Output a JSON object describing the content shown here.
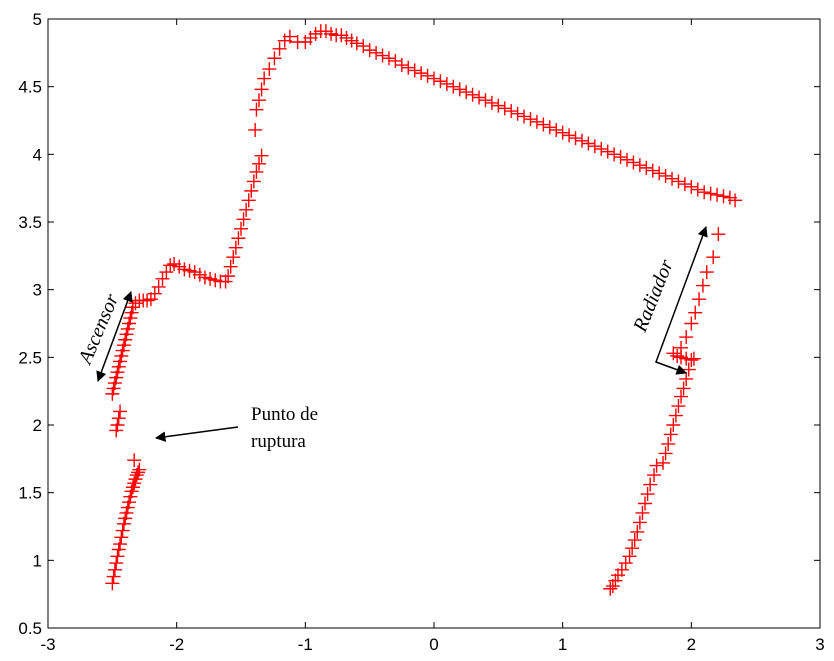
{
  "chart_data": {
    "type": "scatter",
    "xlim": [
      -3,
      3
    ],
    "ylim": [
      0.5,
      5
    ],
    "xticks": [
      "-3",
      "-2",
      "-1",
      "0",
      "1",
      "2",
      "3"
    ],
    "yticks": [
      "0.5",
      "1",
      "1.5",
      "2",
      "2.5",
      "3",
      "3.5",
      "4",
      "4.5",
      "5"
    ],
    "grid": false,
    "marker": "+",
    "marker_color": "#ff0000",
    "series": [
      {
        "values": [
          {
            "x": -2.5,
            "y": 0.83
          },
          {
            "x": -2.49,
            "y": 0.88
          },
          {
            "x": -2.48,
            "y": 0.93
          },
          {
            "x": -2.47,
            "y": 0.98
          },
          {
            "x": -2.46,
            "y": 1.03
          },
          {
            "x": -2.45,
            "y": 1.08
          },
          {
            "x": -2.44,
            "y": 1.12
          },
          {
            "x": -2.43,
            "y": 1.17
          },
          {
            "x": -2.42,
            "y": 1.22
          },
          {
            "x": -2.41,
            "y": 1.27
          },
          {
            "x": -2.4,
            "y": 1.31
          },
          {
            "x": -2.39,
            "y": 1.35
          },
          {
            "x": -2.38,
            "y": 1.39
          },
          {
            "x": -2.37,
            "y": 1.43
          },
          {
            "x": -2.36,
            "y": 1.47
          },
          {
            "x": -2.35,
            "y": 1.51
          },
          {
            "x": -2.34,
            "y": 1.54
          },
          {
            "x": -2.33,
            "y": 1.57
          },
          {
            "x": -2.32,
            "y": 1.6
          },
          {
            "x": -2.31,
            "y": 1.63
          },
          {
            "x": -2.3,
            "y": 1.65
          },
          {
            "x": -2.29,
            "y": 1.67
          },
          {
            "x": -2.33,
            "y": 1.74
          },
          {
            "x": -2.47,
            "y": 1.96
          },
          {
            "x": -2.46,
            "y": 2.0
          },
          {
            "x": -2.45,
            "y": 2.05
          },
          {
            "x": -2.44,
            "y": 2.1
          },
          {
            "x": -2.5,
            "y": 2.23
          },
          {
            "x": -2.49,
            "y": 2.27
          },
          {
            "x": -2.48,
            "y": 2.31
          },
          {
            "x": -2.47,
            "y": 2.35
          },
          {
            "x": -2.46,
            "y": 2.39
          },
          {
            "x": -2.45,
            "y": 2.43
          },
          {
            "x": -2.44,
            "y": 2.47
          },
          {
            "x": -2.43,
            "y": 2.51
          },
          {
            "x": -2.42,
            "y": 2.55
          },
          {
            "x": -2.41,
            "y": 2.59
          },
          {
            "x": -2.4,
            "y": 2.63
          },
          {
            "x": -2.39,
            "y": 2.67
          },
          {
            "x": -2.38,
            "y": 2.71
          },
          {
            "x": -2.37,
            "y": 2.75
          },
          {
            "x": -2.36,
            "y": 2.79
          },
          {
            "x": -2.35,
            "y": 2.83
          },
          {
            "x": -2.34,
            "y": 2.87
          },
          {
            "x": -2.32,
            "y": 2.9
          },
          {
            "x": -2.29,
            "y": 2.92
          },
          {
            "x": -2.26,
            "y": 2.92
          },
          {
            "x": -2.23,
            "y": 2.92
          },
          {
            "x": -2.2,
            "y": 2.93
          },
          {
            "x": -2.17,
            "y": 2.97
          },
          {
            "x": -2.14,
            "y": 3.02
          },
          {
            "x": -2.11,
            "y": 3.08
          },
          {
            "x": -2.08,
            "y": 3.13
          },
          {
            "x": -2.05,
            "y": 3.18
          },
          {
            "x": -2.02,
            "y": 3.19
          },
          {
            "x": -1.98,
            "y": 3.17
          },
          {
            "x": -1.94,
            "y": 3.15
          },
          {
            "x": -1.9,
            "y": 3.14
          },
          {
            "x": -1.86,
            "y": 3.13
          },
          {
            "x": -1.82,
            "y": 3.11
          },
          {
            "x": -1.78,
            "y": 3.09
          },
          {
            "x": -1.74,
            "y": 3.08
          },
          {
            "x": -1.7,
            "y": 3.07
          },
          {
            "x": -1.66,
            "y": 3.06
          },
          {
            "x": -1.62,
            "y": 3.06
          },
          {
            "x": -1.6,
            "y": 3.1
          },
          {
            "x": -1.58,
            "y": 3.17
          },
          {
            "x": -1.56,
            "y": 3.24
          },
          {
            "x": -1.54,
            "y": 3.31
          },
          {
            "x": -1.52,
            "y": 3.38
          },
          {
            "x": -1.5,
            "y": 3.45
          },
          {
            "x": -1.48,
            "y": 3.52
          },
          {
            "x": -1.46,
            "y": 3.59
          },
          {
            "x": -1.44,
            "y": 3.66
          },
          {
            "x": -1.42,
            "y": 3.73
          },
          {
            "x": -1.4,
            "y": 3.8
          },
          {
            "x": -1.38,
            "y": 3.87
          },
          {
            "x": -1.36,
            "y": 3.93
          },
          {
            "x": -1.34,
            "y": 3.99
          },
          {
            "x": -1.39,
            "y": 4.18
          },
          {
            "x": -1.38,
            "y": 4.33
          },
          {
            "x": -1.36,
            "y": 4.4
          },
          {
            "x": -1.34,
            "y": 4.48
          },
          {
            "x": -1.32,
            "y": 4.56
          },
          {
            "x": -1.28,
            "y": 4.63
          },
          {
            "x": -1.24,
            "y": 4.71
          },
          {
            "x": -1.2,
            "y": 4.78
          },
          {
            "x": -1.16,
            "y": 4.84
          },
          {
            "x": -1.12,
            "y": 4.87
          },
          {
            "x": -1.06,
            "y": 4.83
          },
          {
            "x": -1.0,
            "y": 4.83
          },
          {
            "x": -0.96,
            "y": 4.86
          },
          {
            "x": -0.92,
            "y": 4.89
          },
          {
            "x": -0.88,
            "y": 4.91
          },
          {
            "x": -0.84,
            "y": 4.91
          },
          {
            "x": -0.8,
            "y": 4.89
          },
          {
            "x": -0.76,
            "y": 4.88
          },
          {
            "x": -0.72,
            "y": 4.88
          },
          {
            "x": -0.68,
            "y": 4.86
          },
          {
            "x": -0.64,
            "y": 4.84
          },
          {
            "x": -0.6,
            "y": 4.82
          },
          {
            "x": -0.55,
            "y": 4.8
          },
          {
            "x": -0.5,
            "y": 4.77
          },
          {
            "x": -0.45,
            "y": 4.75
          },
          {
            "x": -0.4,
            "y": 4.73
          },
          {
            "x": -0.35,
            "y": 4.71
          },
          {
            "x": -0.3,
            "y": 4.69
          },
          {
            "x": -0.25,
            "y": 4.66
          },
          {
            "x": -0.2,
            "y": 4.64
          },
          {
            "x": -0.15,
            "y": 4.62
          },
          {
            "x": -0.1,
            "y": 4.6
          },
          {
            "x": -0.05,
            "y": 4.58
          },
          {
            "x": 0.0,
            "y": 4.56
          },
          {
            "x": 0.05,
            "y": 4.54
          },
          {
            "x": 0.1,
            "y": 4.52
          },
          {
            "x": 0.15,
            "y": 4.5
          },
          {
            "x": 0.2,
            "y": 4.48
          },
          {
            "x": 0.25,
            "y": 4.46
          },
          {
            "x": 0.3,
            "y": 4.44
          },
          {
            "x": 0.35,
            "y": 4.42
          },
          {
            "x": 0.4,
            "y": 4.4
          },
          {
            "x": 0.45,
            "y": 4.38
          },
          {
            "x": 0.5,
            "y": 4.36
          },
          {
            "x": 0.55,
            "y": 4.34
          },
          {
            "x": 0.6,
            "y": 4.32
          },
          {
            "x": 0.65,
            "y": 4.3
          },
          {
            "x": 0.7,
            "y": 4.28
          },
          {
            "x": 0.75,
            "y": 4.26
          },
          {
            "x": 0.8,
            "y": 4.24
          },
          {
            "x": 0.85,
            "y": 4.22
          },
          {
            "x": 0.9,
            "y": 4.2
          },
          {
            "x": 0.95,
            "y": 4.18
          },
          {
            "x": 1.0,
            "y": 4.16
          },
          {
            "x": 1.05,
            "y": 4.14
          },
          {
            "x": 1.1,
            "y": 4.12
          },
          {
            "x": 1.15,
            "y": 4.1
          },
          {
            "x": 1.2,
            "y": 4.08
          },
          {
            "x": 1.25,
            "y": 4.06
          },
          {
            "x": 1.3,
            "y": 4.04
          },
          {
            "x": 1.35,
            "y": 4.02
          },
          {
            "x": 1.4,
            "y": 4.0
          },
          {
            "x": 1.45,
            "y": 3.98
          },
          {
            "x": 1.5,
            "y": 3.96
          },
          {
            "x": 1.55,
            "y": 3.94
          },
          {
            "x": 1.6,
            "y": 3.92
          },
          {
            "x": 1.65,
            "y": 3.9
          },
          {
            "x": 1.7,
            "y": 3.88
          },
          {
            "x": 1.75,
            "y": 3.86
          },
          {
            "x": 1.8,
            "y": 3.84
          },
          {
            "x": 1.85,
            "y": 3.82
          },
          {
            "x": 1.9,
            "y": 3.8
          },
          {
            "x": 1.95,
            "y": 3.78
          },
          {
            "x": 2.0,
            "y": 3.76
          },
          {
            "x": 2.05,
            "y": 3.74
          },
          {
            "x": 2.1,
            "y": 3.72
          },
          {
            "x": 2.15,
            "y": 3.71
          },
          {
            "x": 2.2,
            "y": 3.7
          },
          {
            "x": 2.25,
            "y": 3.69
          },
          {
            "x": 2.3,
            "y": 3.68
          },
          {
            "x": 2.34,
            "y": 3.66
          },
          {
            "x": 2.21,
            "y": 3.41
          },
          {
            "x": 2.17,
            "y": 3.24
          },
          {
            "x": 2.12,
            "y": 3.13
          },
          {
            "x": 2.09,
            "y": 3.03
          },
          {
            "x": 2.06,
            "y": 2.93
          },
          {
            "x": 2.03,
            "y": 2.83
          },
          {
            "x": 2.0,
            "y": 2.75
          },
          {
            "x": 1.96,
            "y": 2.65
          },
          {
            "x": 1.92,
            "y": 2.57
          },
          {
            "x": 1.86,
            "y": 2.53
          },
          {
            "x": 1.89,
            "y": 2.51
          },
          {
            "x": 1.92,
            "y": 2.5
          },
          {
            "x": 1.96,
            "y": 2.49
          },
          {
            "x": 2.0,
            "y": 2.48
          },
          {
            "x": 2.02,
            "y": 2.49
          },
          {
            "x": 1.98,
            "y": 2.41
          },
          {
            "x": 1.96,
            "y": 2.34
          },
          {
            "x": 1.94,
            "y": 2.27
          },
          {
            "x": 1.92,
            "y": 2.21
          },
          {
            "x": 1.9,
            "y": 2.14
          },
          {
            "x": 1.88,
            "y": 2.07
          },
          {
            "x": 1.86,
            "y": 2.0
          },
          {
            "x": 1.84,
            "y": 1.93
          },
          {
            "x": 1.82,
            "y": 1.86
          },
          {
            "x": 1.8,
            "y": 1.79
          },
          {
            "x": 1.78,
            "y": 1.72
          },
          {
            "x": 1.73,
            "y": 1.7
          },
          {
            "x": 1.71,
            "y": 1.63
          },
          {
            "x": 1.68,
            "y": 1.56
          },
          {
            "x": 1.66,
            "y": 1.49
          },
          {
            "x": 1.64,
            "y": 1.42
          },
          {
            "x": 1.62,
            "y": 1.35
          },
          {
            "x": 1.6,
            "y": 1.28
          },
          {
            "x": 1.58,
            "y": 1.21
          },
          {
            "x": 1.56,
            "y": 1.15
          },
          {
            "x": 1.54,
            "y": 1.09
          },
          {
            "x": 1.52,
            "y": 1.03
          },
          {
            "x": 1.49,
            "y": 0.98
          },
          {
            "x": 1.46,
            "y": 0.93
          },
          {
            "x": 1.43,
            "y": 0.89
          },
          {
            "x": 1.41,
            "y": 0.85
          },
          {
            "x": 1.39,
            "y": 0.81
          },
          {
            "x": 1.37,
            "y": 0.79
          }
        ]
      }
    ],
    "annotations": [
      {
        "text": "Ascensor",
        "style": "italic"
      },
      {
        "text_lines": [
          "Punto de",
          "ruptura"
        ],
        "style": "normal"
      },
      {
        "text": "Radiador",
        "style": "italic"
      }
    ]
  }
}
